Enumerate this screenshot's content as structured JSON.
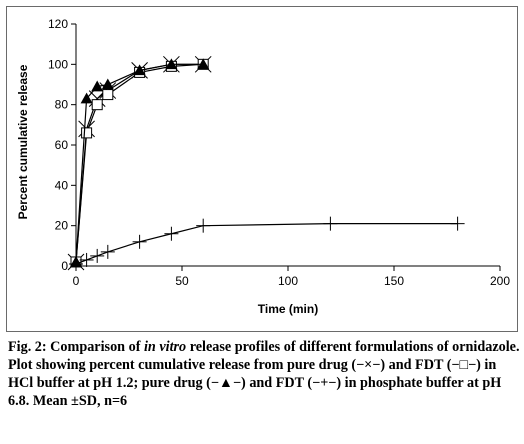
{
  "chart_data": {
    "type": "line",
    "xlabel": "Time (min)",
    "ylabel": "Percent cumulative release",
    "xlim": [
      0,
      200
    ],
    "ylim": [
      0,
      120
    ],
    "xticks": [
      "0",
      "50",
      "100",
      "150",
      "200"
    ],
    "yticks": [
      "0",
      "20",
      "40",
      "60",
      "80",
      "100",
      "120"
    ],
    "grid": false,
    "series": [
      {
        "marker": "x",
        "x": [
          0,
          5,
          10,
          15,
          30,
          45,
          60
        ],
        "y": [
          2,
          68,
          83,
          87,
          97,
          100,
          100
        ]
      },
      {
        "marker": "square",
        "x": [
          0,
          5,
          10,
          15,
          30,
          45,
          60
        ],
        "y": [
          2,
          66,
          80,
          85,
          96,
          99,
          100
        ]
      },
      {
        "marker": "triangle",
        "x": [
          0,
          5,
          10,
          15,
          30,
          45,
          60
        ],
        "y": [
          2,
          83,
          89,
          90,
          97,
          100,
          100
        ]
      },
      {
        "marker": "plus",
        "x": [
          0,
          5,
          10,
          15,
          30,
          45,
          60,
          120,
          180
        ],
        "y": [
          1,
          3,
          5,
          7,
          12,
          16,
          20,
          21,
          21
        ]
      }
    ]
  },
  "caption": {
    "title_prefix": "Fig. 2: Comparison of ",
    "title_italic": "in vitro",
    "title_suffix": " release profiles of different formulations of ornidazole.",
    "body": "Plot showing percent cumulative release from pure drug (−×−) and FDT (−□−) in HCl buffer at pH 1.2; pure drug (−▲−) and FDT (−+−) in phosphate buffer at pH 6.8. Mean ±SD, n=6"
  }
}
